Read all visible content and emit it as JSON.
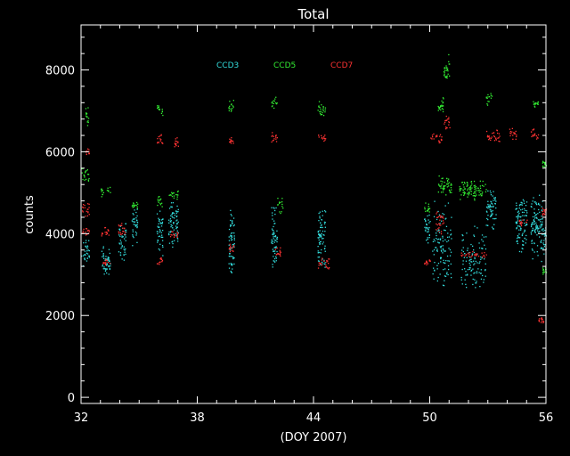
{
  "chart_data": {
    "type": "scatter",
    "title": "Total",
    "xlabel": "(DOY 2007)",
    "ylabel": "counts",
    "xlim": [
      32,
      56
    ],
    "ylim": [
      -150,
      9100
    ],
    "xticks": [
      32,
      38,
      44,
      50,
      56
    ],
    "yticks": [
      0,
      2000,
      4000,
      6000,
      8000
    ],
    "grid": false,
    "legend_position": "top-center",
    "series": [
      {
        "name": "CCD3",
        "color": "#33dddd",
        "clusters": [
          {
            "x": [
              32.0,
              32.4
            ],
            "y": [
              3200,
              3900
            ]
          },
          {
            "x": [
              33.0,
              33.5
            ],
            "y": [
              2900,
              3800
            ]
          },
          {
            "x": [
              33.9,
              34.3
            ],
            "y": [
              3300,
              4300
            ]
          },
          {
            "x": [
              34.6,
              34.9
            ],
            "y": [
              3600,
              4700
            ]
          },
          {
            "x": [
              35.9,
              36.2
            ],
            "y": [
              3400,
              4700
            ]
          },
          {
            "x": [
              36.5,
              37.0
            ],
            "y": [
              3600,
              4900
            ]
          },
          {
            "x": [
              39.6,
              39.9
            ],
            "y": [
              2900,
              4800
            ]
          },
          {
            "x": [
              41.8,
              42.1
            ],
            "y": [
              3000,
              4800
            ]
          },
          {
            "x": [
              44.2,
              44.6
            ],
            "y": [
              3100,
              4800
            ]
          },
          {
            "x": [
              49.7,
              50.0
            ],
            "y": [
              3700,
              4600
            ]
          },
          {
            "x": [
              50.1,
              51.1
            ],
            "y": [
              2600,
              4900
            ]
          },
          {
            "x": [
              51.6,
              52.9
            ],
            "y": [
              2600,
              4300
            ]
          },
          {
            "x": [
              52.9,
              53.4
            ],
            "y": [
              4100,
              5200
            ]
          },
          {
            "x": [
              54.4,
              55.0
            ],
            "y": [
              3500,
              5000
            ]
          },
          {
            "x": [
              55.2,
              55.8
            ],
            "y": [
              3300,
              5000
            ]
          },
          {
            "x": [
              55.8,
              56.0
            ],
            "y": [
              3400,
              4300
            ]
          }
        ]
      },
      {
        "name": "CCD5",
        "color": "#33ee33",
        "clusters": [
          {
            "x": [
              32.0,
              32.4
            ],
            "y": [
              5200,
              5650
            ]
          },
          {
            "x": [
              32.2,
              32.4
            ],
            "y": [
              6600,
              7200
            ]
          },
          {
            "x": [
              33.0,
              33.5
            ],
            "y": [
              4900,
              5200
            ]
          },
          {
            "x": [
              34.6,
              34.9
            ],
            "y": [
              4600,
              4800
            ]
          },
          {
            "x": [
              35.9,
              36.2
            ],
            "y": [
              4600,
              5000
            ]
          },
          {
            "x": [
              35.9,
              36.2
            ],
            "y": [
              6900,
              7200
            ]
          },
          {
            "x": [
              36.5,
              37.0
            ],
            "y": [
              4800,
              5100
            ]
          },
          {
            "x": [
              39.6,
              39.9
            ],
            "y": [
              6900,
              7300
            ]
          },
          {
            "x": [
              41.8,
              42.1
            ],
            "y": [
              7000,
              7400
            ]
          },
          {
            "x": [
              42.1,
              42.4
            ],
            "y": [
              4500,
              4900
            ]
          },
          {
            "x": [
              44.2,
              44.6
            ],
            "y": [
              6800,
              7300
            ]
          },
          {
            "x": [
              49.7,
              50.0
            ],
            "y": [
              4500,
              4800
            ]
          },
          {
            "x": [
              50.4,
              50.8
            ],
            "y": [
              6900,
              7400
            ]
          },
          {
            "x": [
              50.4,
              51.1
            ],
            "y": [
              4900,
              5500
            ]
          },
          {
            "x": [
              50.7,
              51.0
            ],
            "y": [
              7600,
              8400
            ]
          },
          {
            "x": [
              51.5,
              52.9
            ],
            "y": [
              4800,
              5400
            ]
          },
          {
            "x": [
              52.9,
              53.2
            ],
            "y": [
              7100,
              7500
            ]
          },
          {
            "x": [
              55.3,
              55.6
            ],
            "y": [
              7100,
              7300
            ]
          },
          {
            "x": [
              55.8,
              56.0
            ],
            "y": [
              3000,
              3200
            ]
          },
          {
            "x": [
              55.8,
              56.0
            ],
            "y": [
              5600,
              5800
            ]
          }
        ]
      },
      {
        "name": "CCD7",
        "color": "#ff3333",
        "clusters": [
          {
            "x": [
              32.0,
              32.4
            ],
            "y": [
              3900,
              4200
            ]
          },
          {
            "x": [
              32.0,
              32.4
            ],
            "y": [
              4400,
              4800
            ]
          },
          {
            "x": [
              32.2,
              32.4
            ],
            "y": [
              5900,
              6100
            ]
          },
          {
            "x": [
              33.0,
              33.5
            ],
            "y": [
              3900,
              4200
            ]
          },
          {
            "x": [
              33.1,
              33.5
            ],
            "y": [
              3200,
              3400
            ]
          },
          {
            "x": [
              33.9,
              34.3
            ],
            "y": [
              3900,
              4300
            ]
          },
          {
            "x": [
              35.9,
              36.2
            ],
            "y": [
              3250,
              3450
            ]
          },
          {
            "x": [
              35.9,
              36.2
            ],
            "y": [
              6100,
              6500
            ]
          },
          {
            "x": [
              36.5,
              37.0
            ],
            "y": [
              3900,
              4100
            ]
          },
          {
            "x": [
              36.8,
              37.0
            ],
            "y": [
              6100,
              6400
            ]
          },
          {
            "x": [
              39.6,
              39.9
            ],
            "y": [
              3500,
              3800
            ]
          },
          {
            "x": [
              39.6,
              39.9
            ],
            "y": [
              6200,
              6400
            ]
          },
          {
            "x": [
              41.8,
              42.1
            ],
            "y": [
              6200,
              6500
            ]
          },
          {
            "x": [
              42.0,
              42.3
            ],
            "y": [
              3400,
              3700
            ]
          },
          {
            "x": [
              44.2,
              44.8
            ],
            "y": [
              3100,
              3450
            ]
          },
          {
            "x": [
              44.2,
              44.6
            ],
            "y": [
              6200,
              6500
            ]
          },
          {
            "x": [
              49.7,
              50.0
            ],
            "y": [
              3200,
              3400
            ]
          },
          {
            "x": [
              50.0,
              50.6
            ],
            "y": [
              6200,
              6500
            ]
          },
          {
            "x": [
              50.3,
              50.7
            ],
            "y": [
              4000,
              4600
            ]
          },
          {
            "x": [
              50.7,
              51.1
            ],
            "y": [
              6500,
              6900
            ]
          },
          {
            "x": [
              51.6,
              52.9
            ],
            "y": [
              3400,
              3600
            ]
          },
          {
            "x": [
              52.9,
              53.6
            ],
            "y": [
              6200,
              6600
            ]
          },
          {
            "x": [
              54.1,
              54.6
            ],
            "y": [
              6300,
              6600
            ]
          },
          {
            "x": [
              54.6,
              55.1
            ],
            "y": [
              4200,
              4400
            ]
          },
          {
            "x": [
              55.1,
              55.6
            ],
            "y": [
              6300,
              6600
            ]
          },
          {
            "x": [
              55.8,
              56.0
            ],
            "y": [
              4400,
              4700
            ]
          },
          {
            "x": [
              55.6,
              55.9
            ],
            "y": [
              1800,
              2000
            ]
          }
        ]
      }
    ]
  }
}
